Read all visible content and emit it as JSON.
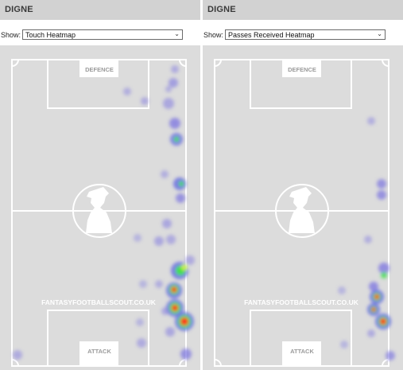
{
  "panels": [
    {
      "title": "DIGNE",
      "show_label": "Show:",
      "selected": "Touch Heatmap",
      "icon": "chevron-down-icon",
      "pitch": {
        "top_box_label": "DEFENCE",
        "bottom_box_label": "ATTACK",
        "watermark": "FANTASYFOOTBALLSCOUT.CO.UK",
        "logo": "scout-silhouette-logo"
      }
    },
    {
      "title": "DIGNE",
      "show_label": "Show:",
      "selected": "Passes Received Heatmap",
      "icon": "chevron-down-icon",
      "pitch": {
        "top_box_label": "DEFENCE",
        "bottom_box_label": "ATTACK",
        "watermark": "FANTASYFOOTBALLSCOUT.CO.UK",
        "logo": "scout-silhouette-logo"
      }
    }
  ],
  "colors": {
    "header_bg": "#d2d2d2",
    "pitch_bg": "#dcdcdc",
    "lines": "#ffffff",
    "heat_low": "#8a84e0",
    "heat_mid": "#3fe04a",
    "heat_high": "#ff2a1a"
  }
}
